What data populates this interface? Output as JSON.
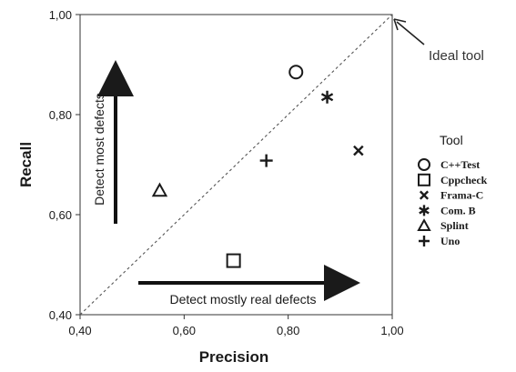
{
  "chart_data": {
    "type": "scatter",
    "xlabel": "Precision",
    "ylabel": "Recall",
    "xlim": [
      0.4,
      1.0
    ],
    "ylim": [
      0.4,
      1.0
    ],
    "x_ticks": [
      "0,40",
      "0,60",
      "0,80",
      "1,00"
    ],
    "y_ticks": [
      "0,40",
      "0,60",
      "0,80",
      "1,00"
    ],
    "legend_title": "Tool",
    "legend_position": "right",
    "grid": false,
    "series": [
      {
        "name": "C++Test",
        "marker": "circle",
        "x": 0.815,
        "y": 0.885
      },
      {
        "name": "Cppcheck",
        "marker": "square",
        "x": 0.695,
        "y": 0.508
      },
      {
        "name": "Frama-C",
        "marker": "x",
        "x": 0.935,
        "y": 0.728
      },
      {
        "name": "Com. B",
        "marker": "star",
        "x": 0.875,
        "y": 0.835
      },
      {
        "name": "Splint",
        "marker": "triangle",
        "x": 0.553,
        "y": 0.648
      },
      {
        "name": "Uno",
        "marker": "plus",
        "x": 0.758,
        "y": 0.708
      }
    ],
    "reference_line": {
      "from": [
        0.4,
        0.4
      ],
      "to": [
        1.0,
        1.0
      ],
      "style": "dashed"
    },
    "annotations": {
      "ideal": "Ideal tool",
      "vertical_arrow": "Detect most defects",
      "horizontal_arrow": "Detect mostly real defects"
    }
  },
  "colors": {
    "marks": "#1a1a1a",
    "frame": "#333333",
    "diagonal": "#555555"
  }
}
